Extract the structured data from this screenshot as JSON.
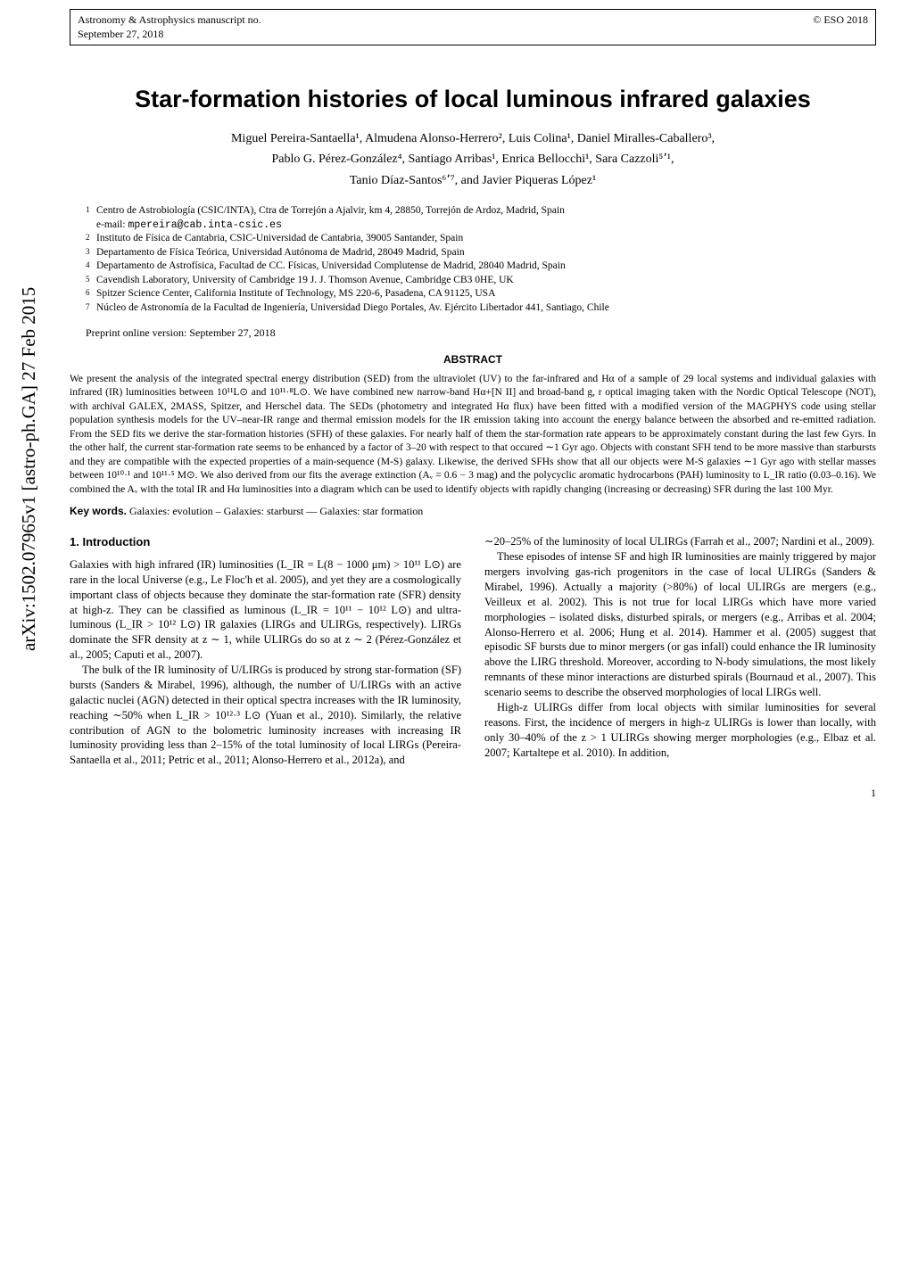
{
  "arxiv_id": "arXiv:1502.07965v1  [astro-ph.GA]  27 Feb 2015",
  "header": {
    "journal": "Astronomy & Astrophysics manuscript no.",
    "date": "September 27, 2018",
    "copyright": "© ESO 2018"
  },
  "title": "Star-formation histories of local luminous infrared galaxies",
  "authors_line1": "Miguel Pereira-Santaella¹, Almudena Alonso-Herrero², Luis Colina¹, Daniel Miralles-Caballero³,",
  "authors_line2": "Pablo G. Pérez-González⁴, Santiago Arribas¹, Enrica Bellocchi¹, Sara Cazzoli⁵٬¹,",
  "authors_line3": "Tanio Díaz-Santos⁶٬⁷, and Javier Piqueras López¹",
  "affiliations": [
    {
      "n": "1",
      "text": "Centro de Astrobiología (CSIC/INTA), Ctra de Torrejón a Ajalvir, km 4, 28850, Torrejón de Ardoz, Madrid, Spain"
    },
    {
      "n": "",
      "text": "e-mail: mpereira@cab.inta-csic.es",
      "mono": true
    },
    {
      "n": "2",
      "text": "Instituto de Física de Cantabria, CSIC-Universidad de Cantabria, 39005 Santander, Spain"
    },
    {
      "n": "3",
      "text": "Departamento de Física Teórica, Universidad Autónoma de Madrid, 28049 Madrid, Spain"
    },
    {
      "n": "4",
      "text": "Departamento de Astrofísica, Facultad de CC. Físicas, Universidad Complutense de Madrid, 28040 Madrid, Spain"
    },
    {
      "n": "5",
      "text": "Cavendish Laboratory, University of Cambridge 19 J. J. Thomson Avenue, Cambridge CB3 0HE, UK"
    },
    {
      "n": "6",
      "text": "Spitzer Science Center, California Institute of Technology, MS 220-6, Pasadena, CA 91125, USA"
    },
    {
      "n": "7",
      "text": "Núcleo de Astronomía de la Facultad de Ingeniería, Universidad Diego Portales, Av. Ejército Libertador 441, Santiago, Chile"
    }
  ],
  "preprint": "Preprint online version: September 27, 2018",
  "abstract_label": "ABSTRACT",
  "abstract": "We present the analysis of the integrated spectral energy distribution (SED) from the ultraviolet (UV) to the far-infrared and Hα of a sample of 29 local systems and individual galaxies with infrared (IR) luminosities between 10¹¹L⊙ and 10¹¹·⁸L⊙. We have combined new narrow-band Hα+[N II] and broad-band g, r optical imaging taken with the Nordic Optical Telescope (NOT), with archival GALEX, 2MASS, Spitzer, and Herschel data. The SEDs (photometry and integrated Hα flux) have been fitted with a modified version of the MAGPHYS code using stellar population synthesis models for the UV–near-IR range and thermal emission models for the IR emission taking into account the energy balance between the absorbed and re-emitted radiation. From the SED fits we derive the star-formation histories (SFH) of these galaxies. For nearly half of them the star-formation rate appears to be approximately constant during the last few Gyrs. In the other half, the current star-formation rate seems to be enhanced by a factor of 3–20 with respect to that occured ∼1 Gyr ago. Objects with constant SFH tend to be more massive than starbursts and they are compatible with the expected properties of a main-sequence (M-S) galaxy. Likewise, the derived SFHs show that all our objects were M-S galaxies ∼1 Gyr ago with stellar masses between 10¹⁰·¹ and 10¹¹·⁵ M⊙. We also derived from our fits the average extinction (Aᵥ = 0.6 − 3 mag) and the polycyclic aromatic hydrocarbons (PAH) luminosity to L_IR ratio (0.03–0.16). We combined the Aᵥ with the total IR and Hα luminosities into a diagram which can be used to identify objects with rapidly changing (increasing or decreasing) SFR during the last 100 Myr.",
  "keywords_label": "Key words.",
  "keywords": "Galaxies: evolution – Galaxies: starburst — Galaxies: star formation",
  "section1": "1. Introduction",
  "col1": {
    "p1": "Galaxies with high infrared (IR) luminosities (L_IR = L(8 − 1000 μm) > 10¹¹ L⊙) are rare in the local Universe (e.g., Le Floc'h et al. 2005), and yet they are a cosmologically important class of objects because they dominate the star-formation rate (SFR) density at high-z. They can be classified as luminous (L_IR = 10¹¹ − 10¹² L⊙) and ultra-luminous (L_IR > 10¹² L⊙) IR galaxies (LIRGs and ULIRGs, respectively). LIRGs dominate the SFR density at z ∼ 1, while ULIRGs do so at z ∼ 2 (Pérez-González et al., 2005; Caputi et al., 2007).",
    "p2": "The bulk of the IR luminosity of U/LIRGs is produced by strong star-formation (SF) bursts (Sanders & Mirabel, 1996), although, the number of U/LIRGs with an active galactic nuclei (AGN) detected in their optical spectra increases with the IR luminosity, reaching ∼50% when L_IR > 10¹²·³ L⊙ (Yuan et al., 2010). Similarly, the relative contribution of AGN to the bolometric luminosity increases with increasing IR luminosity providing less than 2–15% of the total luminosity of local LIRGs (Pereira-Santaella et al., 2011; Petric et al., 2011; Alonso-Herrero et al., 2012a), and"
  },
  "col2": {
    "p0": "∼20–25% of the luminosity of local ULIRGs (Farrah et al., 2007; Nardini et al., 2009).",
    "p1": "These episodes of intense SF and high IR luminosities are mainly triggered by major mergers involving gas-rich progenitors in the case of local ULIRGs (Sanders & Mirabel, 1996). Actually a majority (>80%) of local ULIRGs are mergers (e.g., Veilleux et al. 2002). This is not true for local LIRGs which have more varied morphologies – isolated disks, disturbed spirals, or mergers (e.g., Arribas et al. 2004; Alonso-Herrero et al. 2006; Hung et al. 2014). Hammer et al. (2005) suggest that episodic SF bursts due to minor mergers (or gas infall) could enhance the IR luminosity above the LIRG threshold. Moreover, according to N-body simulations, the most likely remnants of these minor interactions are disturbed spirals (Bournaud et al., 2007). This scenario seems to describe the observed morphologies of local LIRGs well.",
    "p2": "High-z ULIRGs differ from local objects with similar luminosities for several reasons. First, the incidence of mergers in high-z ULIRGs is lower than locally, with only 30–40% of the z > 1 ULIRGs showing merger morphologies (e.g., Elbaz et al. 2007; Kartaltepe et al. 2010). In addition,"
  },
  "pagenum": "1"
}
